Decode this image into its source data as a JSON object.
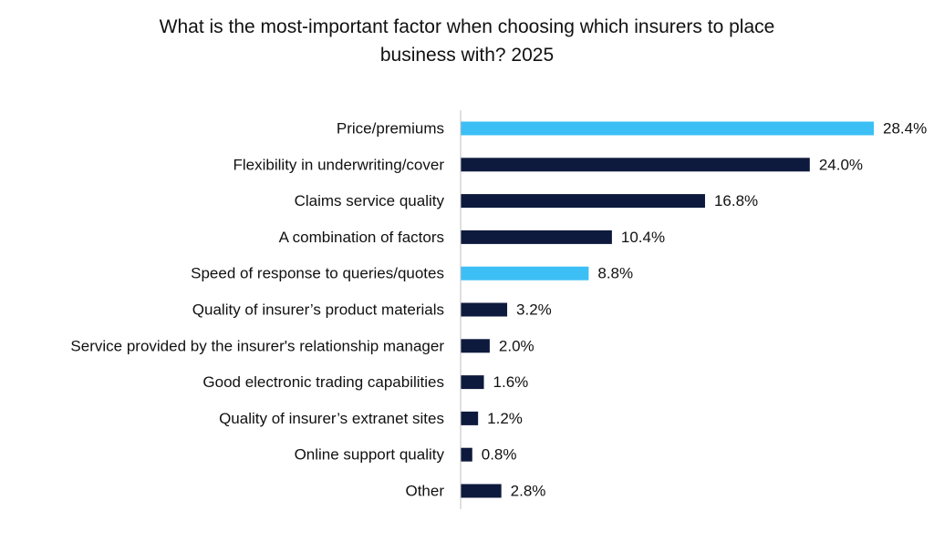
{
  "chart_data": {
    "type": "bar",
    "orientation": "horizontal",
    "title_lines": [
      "What is the most-important factor when choosing which insurers to place",
      "business with? 2025"
    ],
    "categories": [
      "Price/premiums",
      "Flexibility in underwriting/cover",
      "Claims service quality",
      "A combination of factors",
      "Speed of response to queries/quotes",
      "Quality of insurer’s product materials",
      "Service provided by the insurer's relationship manager",
      "Good electronic trading capabilities",
      "Quality of insurer’s extranet sites",
      "Online support quality",
      "Other"
    ],
    "values": [
      28.4,
      24.0,
      16.8,
      10.4,
      8.8,
      3.2,
      2.0,
      1.6,
      1.2,
      0.8,
      2.8
    ],
    "value_labels": [
      "28.4%",
      "24.0%",
      "16.8%",
      "10.4%",
      "8.8%",
      "3.2%",
      "2.0%",
      "1.6%",
      "1.2%",
      "0.8%",
      "2.8%"
    ],
    "highlighted": [
      true,
      false,
      false,
      false,
      true,
      false,
      false,
      false,
      false,
      false,
      false
    ],
    "xlim": [
      0,
      28.4
    ],
    "xlabel": "",
    "ylabel": "",
    "grid": false,
    "legend": "none",
    "colors": {
      "default": "#0e1a3d",
      "highlight": "#3bbff5",
      "axis": "#bfbfbf"
    }
  }
}
